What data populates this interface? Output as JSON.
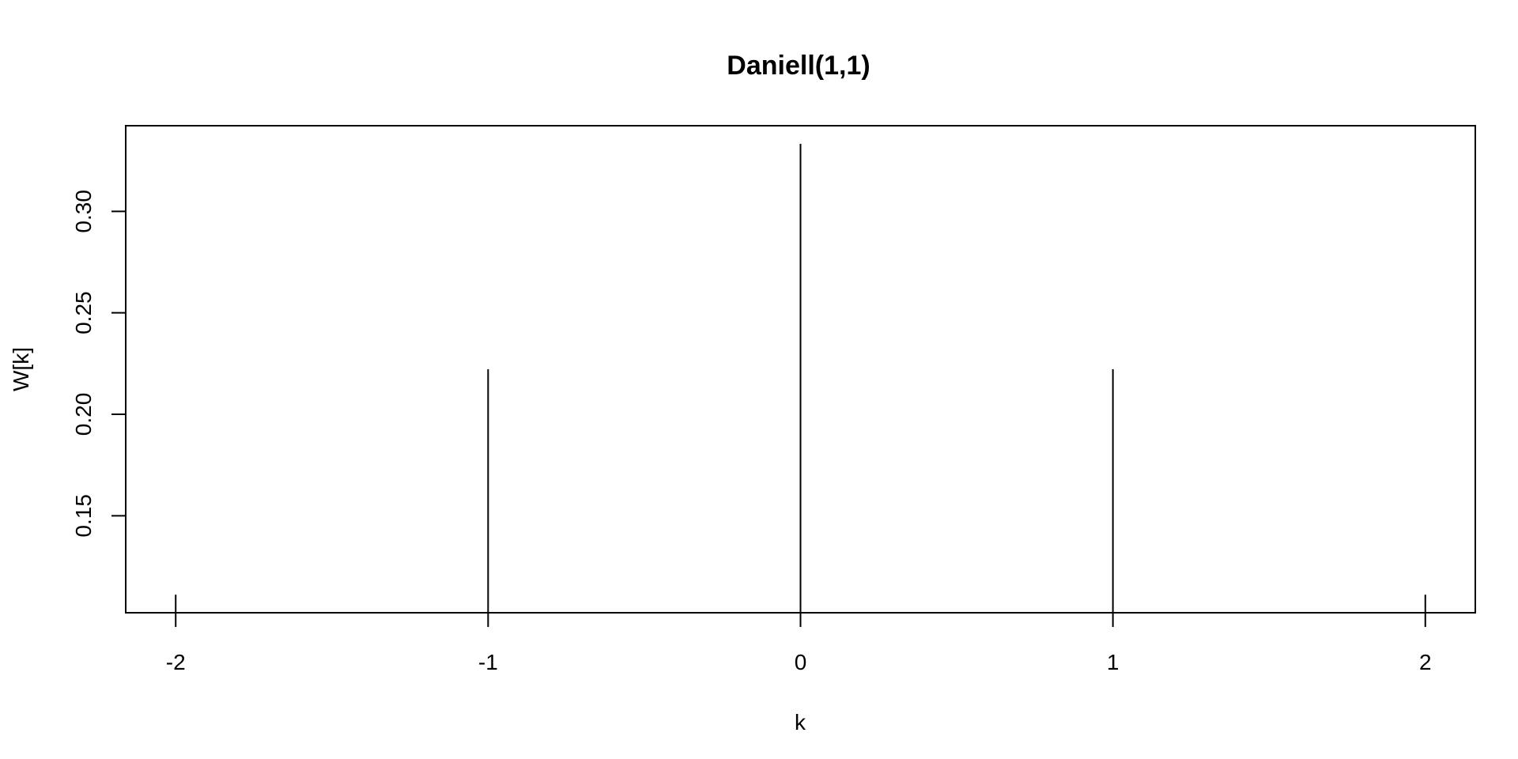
{
  "chart_data": {
    "type": "bar",
    "subtype": "stem",
    "title": "Daniell(1,1)",
    "xlabel": "k",
    "ylabel": "W[k]",
    "x": [
      -2,
      -1,
      0,
      1,
      2
    ],
    "values": [
      0.1111,
      0.2222,
      0.3333,
      0.2222,
      0.1111
    ],
    "xlim": [
      -2.16,
      2.16
    ],
    "ylim": [
      0.1022,
      0.3422
    ],
    "x_ticks": [
      -2,
      -1,
      0,
      1,
      2
    ],
    "x_tick_labels": [
      "-2",
      "-1",
      "0",
      "1",
      "2"
    ],
    "y_ticks": [
      0.15,
      0.2,
      0.25,
      0.3
    ],
    "y_tick_labels": [
      "0.15",
      "0.20",
      "0.25",
      "0.30"
    ],
    "grid": false,
    "legend": "none",
    "colors": {
      "stem": "#000000",
      "frame": "#000000",
      "background": "#ffffff"
    }
  }
}
